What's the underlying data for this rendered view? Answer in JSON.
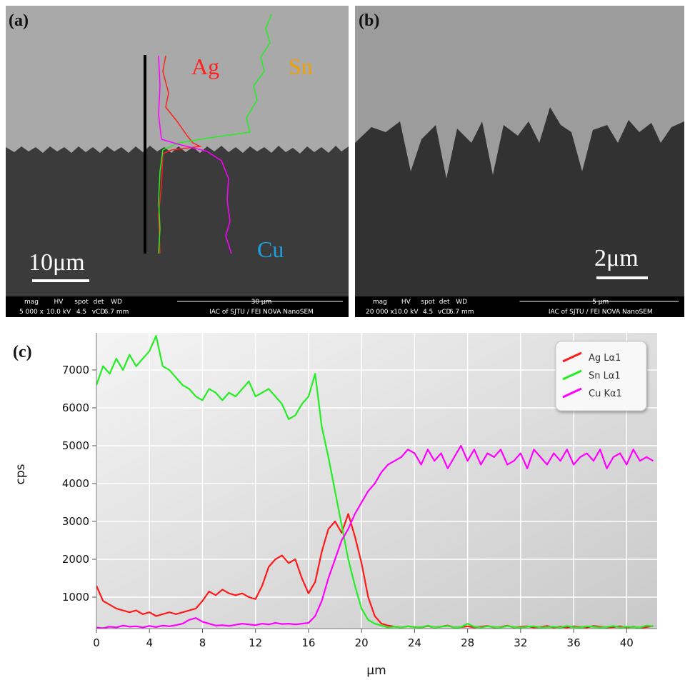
{
  "panel_a": {
    "label": "(a)",
    "element_labels": [
      "Ag",
      "Sn",
      "Cu"
    ],
    "scale_bar": "10μm",
    "info_bar": {
      "headers": [
        "mag",
        "HV",
        "spot",
        "det",
        "WD"
      ],
      "values": [
        "5 000 x",
        "10.0 kV",
        "4.5",
        "vCD",
        "6.7 mm"
      ],
      "scale": "30 μm",
      "credit": "IAC of SJTU / FEI NOVA NanoSEM"
    }
  },
  "panel_b": {
    "label": "(b)",
    "scale_bar": "2μm",
    "info_bar": {
      "headers": [
        "mag",
        "HV",
        "spot",
        "det",
        "WD"
      ],
      "values": [
        "20 000 x",
        "10.0 kV",
        "4.5",
        "vCD",
        "6.7 mm"
      ],
      "scale": "5 μm",
      "credit": "IAC of SJTU / FEI NOVA NanoSEM"
    }
  },
  "chart_data": {
    "type": "line",
    "panel_label": "(c)",
    "x_label": "μm",
    "y_label": "cps",
    "x": [
      0,
      0.5,
      1,
      1.5,
      2,
      2.5,
      3,
      3.5,
      4,
      4.5,
      5,
      5.5,
      6,
      6.5,
      7,
      7.5,
      8,
      8.5,
      9,
      9.5,
      10,
      10.5,
      11,
      11.5,
      12,
      12.5,
      13,
      13.5,
      14,
      14.5,
      15,
      15.5,
      16,
      16.5,
      17,
      17.5,
      18,
      18.5,
      19,
      19.5,
      20,
      20.5,
      21,
      21.5,
      22,
      22.5,
      23,
      23.5,
      24,
      24.5,
      25,
      25.5,
      26,
      26.5,
      27,
      27.5,
      28,
      28.5,
      29,
      29.5,
      30,
      30.5,
      31,
      31.5,
      32,
      32.5,
      33,
      33.5,
      34,
      34.5,
      35,
      35.5,
      36,
      36.5,
      37,
      37.5,
      38,
      38.5,
      39,
      39.5,
      40,
      40.5,
      41,
      41.5,
      42
    ],
    "series": [
      {
        "name": "Ag Lα1",
        "color": "#ff1a1a",
        "values": [
          1300,
          900,
          800,
          700,
          650,
          600,
          650,
          550,
          600,
          500,
          550,
          600,
          550,
          600,
          650,
          700,
          900,
          1150,
          1050,
          1200,
          1100,
          1050,
          1100,
          1000,
          950,
          1300,
          1800,
          2000,
          2100,
          1900,
          2000,
          1500,
          1100,
          1400,
          2200,
          2800,
          3000,
          2700,
          3200,
          2600,
          1900,
          1000,
          500,
          300,
          250,
          220,
          200,
          230,
          210,
          200,
          240,
          200,
          220,
          250,
          200,
          210,
          230,
          200,
          220,
          240,
          200,
          210,
          250,
          200,
          220,
          230,
          200,
          210,
          240,
          200,
          220,
          200,
          230,
          210,
          200,
          240,
          220,
          200,
          210,
          230,
          200,
          220,
          180,
          210,
          240
        ]
      },
      {
        "name": "Sn Lα1",
        "color": "#22ee22",
        "values": [
          6600,
          7100,
          6900,
          7300,
          7000,
          7400,
          7100,
          7300,
          7500,
          7900,
          7100,
          7000,
          6800,
          6600,
          6500,
          6300,
          6200,
          6500,
          6400,
          6200,
          6400,
          6300,
          6500,
          6700,
          6300,
          6400,
          6500,
          6300,
          6100,
          5700,
          5800,
          6100,
          6300,
          6900,
          5500,
          4700,
          3800,
          2900,
          2000,
          1300,
          700,
          400,
          300,
          250,
          200,
          220,
          200,
          230,
          210,
          200,
          250,
          200,
          220,
          240,
          200,
          210,
          300,
          220,
          200,
          230,
          210,
          200,
          240,
          210,
          200,
          220,
          230,
          200,
          210,
          220,
          200,
          240,
          210,
          200,
          230,
          220,
          200,
          210,
          240,
          200,
          220,
          210,
          200,
          250,
          230
        ]
      },
      {
        "name": "Cu Kα1",
        "color": "#ff00ff",
        "values": [
          200,
          180,
          220,
          200,
          250,
          220,
          230,
          200,
          240,
          210,
          250,
          230,
          260,
          300,
          400,
          450,
          350,
          300,
          250,
          260,
          240,
          270,
          300,
          280,
          260,
          300,
          280,
          320,
          290,
          300,
          280,
          300,
          320,
          500,
          900,
          1500,
          2000,
          2500,
          2800,
          3200,
          3500,
          3800,
          4000,
          4300,
          4500,
          4600,
          4700,
          4900,
          4800,
          4500,
          4900,
          4600,
          4800,
          4400,
          4700,
          5000,
          4600,
          4900,
          4500,
          4800,
          4700,
          4900,
          4500,
          4600,
          4800,
          4400,
          4900,
          4700,
          4500,
          4800,
          4600,
          4900,
          4500,
          4700,
          4800,
          4600,
          4900,
          4400,
          4700,
          4800,
          4500,
          4900,
          4600,
          4700,
          4600
        ]
      }
    ],
    "xlim": [
      0,
      42.3
    ],
    "ylim": [
      170,
      7980
    ],
    "xticks": [
      0,
      4,
      8,
      12,
      16,
      20,
      24,
      28,
      32,
      36,
      40
    ],
    "yticks": [
      1000,
      2000,
      3000,
      4000,
      5000,
      6000,
      7000
    ],
    "grid": true,
    "legend": "top-right"
  }
}
